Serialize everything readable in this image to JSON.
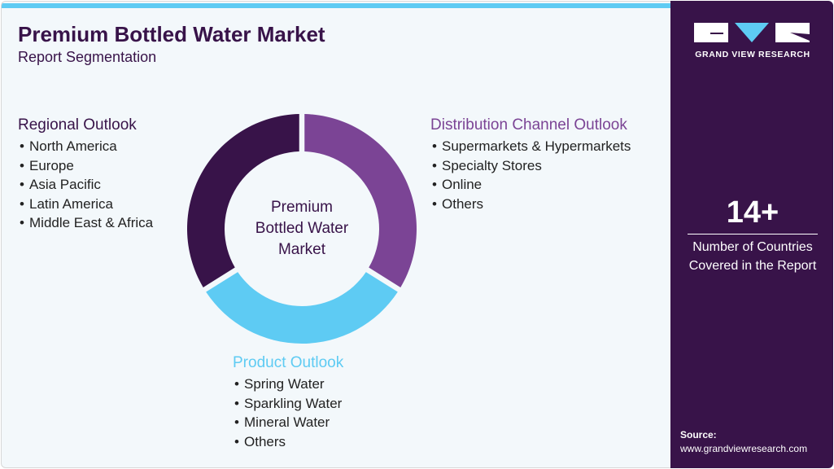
{
  "header": {
    "title": "Premium Bottled Water Market",
    "subtitle": "Report Segmentation"
  },
  "center_label": [
    "Premium",
    "Bottled Water",
    "Market"
  ],
  "colors": {
    "regional": "#381349",
    "distribution": "#7b4495",
    "product": "#5ecbf3"
  },
  "sections": {
    "regional": {
      "title": "Regional Outlook",
      "items": [
        "North America",
        "Europe",
        "Asia Pacific",
        "Latin America",
        "Middle East & Africa"
      ]
    },
    "distribution": {
      "title": "Distribution Channel Outlook",
      "items": [
        "Supermarkets & Hypermarkets",
        "Specialty Stores",
        "Online",
        "Others"
      ]
    },
    "product": {
      "title": "Product Outlook",
      "items": [
        "Spring Water",
        "Sparkling Water",
        "Mineral Water",
        "Others"
      ]
    }
  },
  "sidebar": {
    "brand": "GRAND VIEW RESEARCH",
    "stat_value": "14+",
    "stat_label_1": "Number of Countries",
    "stat_label_2": "Covered in the Report",
    "source_label": "Source:",
    "source_url": "www.grandviewresearch.com"
  }
}
